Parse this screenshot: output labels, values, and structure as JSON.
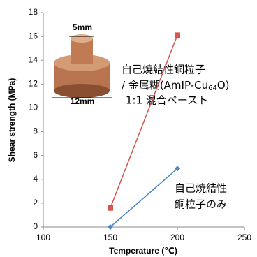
{
  "chart_data": {
    "type": "line",
    "x_label": "Temperature (℃)",
    "y_label": "Shear strength (MPa)",
    "x": [
      150,
      200
    ],
    "series": [
      {
        "color": "#d9534f",
        "marker": "square",
        "values": [
          1.6,
          16.1
        ]
      },
      {
        "color": "#4a86c8",
        "marker": "diamond",
        "values": [
          0,
          4.9
        ]
      }
    ],
    "xlim": [
      100,
      250
    ],
    "xticks": [
      100,
      150,
      200,
      250
    ],
    "ylim": [
      0,
      18
    ],
    "yticks": [
      0,
      2,
      4,
      6,
      8,
      10,
      12,
      14,
      16,
      18
    ],
    "grid": false,
    "annotations": {
      "mixed": [
        "自己焼結性銅粒子",
        "/ 金属糊(AmIP-Cu",
        "64",
        "O)",
        "1:1 混合ペースト"
      ],
      "copper_only": [
        "自己焼結性",
        "銅粒子のみ"
      ],
      "inset": [
        "5mm",
        "12mm"
      ]
    }
  }
}
